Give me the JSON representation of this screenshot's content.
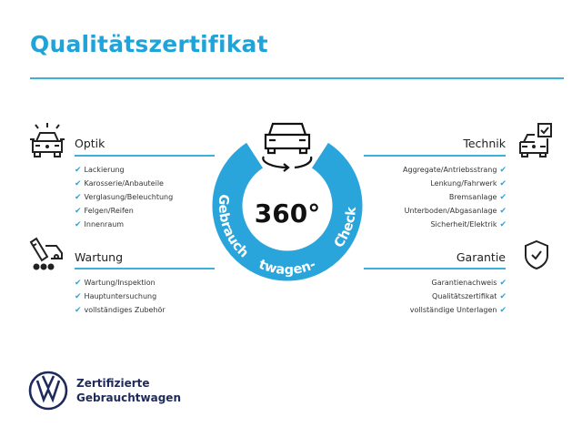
{
  "title": "Qualitätszertifikat",
  "colors": {
    "accent": "#1fa3d9",
    "ring": "#2aa5dc",
    "brand": "#1e2a5a"
  },
  "badge": {
    "big": "360°",
    "ring_text": "Gebrauchtwagen-Check",
    "icon": "car-rotate-icon"
  },
  "sections": {
    "optik": {
      "heading": "Optik",
      "icon": "car-lights-icon",
      "items": [
        "Lackierung",
        "Karosserie/Anbauteile",
        "Verglasung/Beleuchtung",
        "Felgen/Reifen",
        "Innenraum"
      ]
    },
    "wartung": {
      "heading": "Wartung",
      "icon": "service-tools-icon",
      "items": [
        "Wartung/Inspektion",
        "Hauptuntersuchung",
        "vollständiges Zubehör"
      ]
    },
    "technik": {
      "heading": "Technik",
      "icon": "car-checklist-icon",
      "items": [
        "Aggregate/Antriebsstrang",
        "Lenkung/Fahrwerk",
        "Bremsanlage",
        "Unterboden/Abgasanlage",
        "Sicherheit/Elektrik"
      ]
    },
    "garantie": {
      "heading": "Garantie",
      "icon": "shield-check-icon",
      "items": [
        "Garantienachweis",
        "Qualitätszertifikat",
        "vollständige Unterlagen"
      ]
    }
  },
  "check_glyph": "✔",
  "footer": {
    "line1": "Zertifizierte",
    "line2": "Gebrauchtwagen",
    "logo": "vw-logo"
  }
}
